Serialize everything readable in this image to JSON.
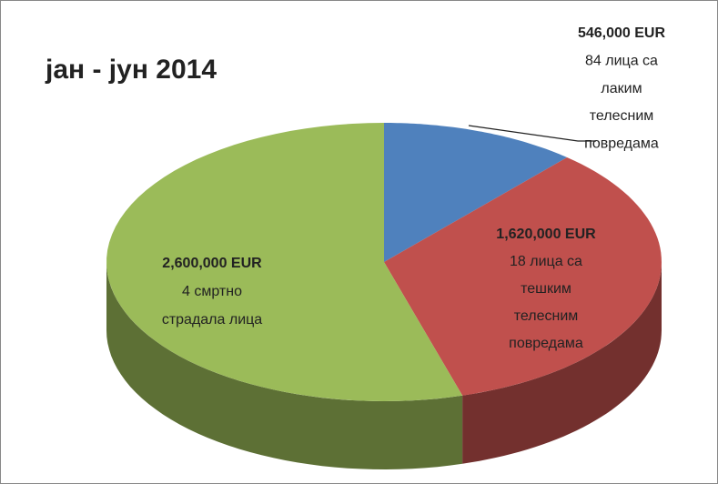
{
  "chart_data": {
    "type": "pie",
    "title": "јан - јун 2014",
    "values": [
      546000,
      1620000,
      2600000
    ],
    "value_labels": [
      "546,000 EUR",
      "1,620,000 EUR",
      "2,600,000 EUR"
    ],
    "labels": [
      [
        "84 лица са",
        "лаким",
        "телесним",
        "повредама"
      ],
      [
        "18 лица са",
        "тешким",
        "телесним",
        "повредама"
      ],
      [
        "4 смртно",
        "страдала лица"
      ]
    ],
    "colors": [
      "#4f81bd",
      "#c0504d",
      "#9bbb59"
    ]
  }
}
